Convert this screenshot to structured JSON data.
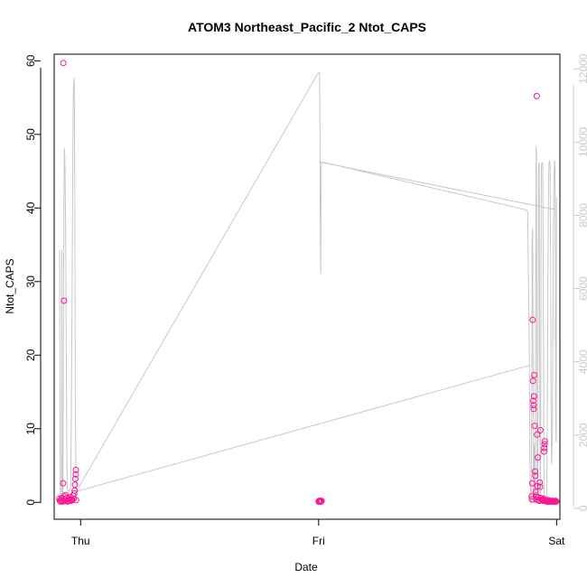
{
  "chart_data": {
    "type": "scatter",
    "title": "ATOM3 Northeast_Pacific_2 Ntot_CAPS",
    "xlabel": "Date",
    "ylabel": "Ntot_CAPS",
    "x_ticks": [
      "Thu",
      "Fri",
      "Sat"
    ],
    "xlim": [
      "Wed 21:20",
      "Sat 00:20"
    ],
    "ylim": [
      -2.3,
      60.9
    ],
    "y_ticks": [
      0,
      10,
      20,
      30,
      40,
      50,
      60
    ],
    "y2lim": [
      -300,
      12400
    ],
    "y2_ticks": [
      0,
      2000,
      4000,
      6000,
      8000,
      10000,
      12000
    ],
    "grid": false,
    "colors": {
      "points": "#ff1493",
      "altitude_line": "#c8c8c8",
      "axis": "#000000",
      "secondary_axis": "#c8c8c8"
    },
    "series": [
      {
        "role": "points",
        "axis": "left",
        "points": [
          [
            "Wed 21:51",
            0.5
          ],
          [
            "Wed 21:54",
            0.2
          ],
          [
            "Wed 21:58",
            0.1
          ],
          [
            "Wed 22:01",
            0.3
          ],
          [
            "Wed 22:05",
            0.6
          ],
          [
            "Wed 22:08",
            0.2
          ],
          [
            "Wed 22:12",
            0.1
          ],
          [
            "Wed 22:14",
            2.6
          ],
          [
            "Wed 22:16",
            59.7
          ],
          [
            "Wed 22:19",
            27.4
          ],
          [
            "Wed 22:22",
            0.3
          ],
          [
            "Wed 22:25",
            0.8
          ],
          [
            "Wed 22:29",
            1.0
          ],
          [
            "Wed 22:32",
            0.4
          ],
          [
            "Wed 22:36",
            0.6
          ],
          [
            "Wed 22:40",
            0.1
          ],
          [
            "Wed 22:44",
            0.2
          ],
          [
            "Wed 22:48",
            0.5
          ],
          [
            "Wed 22:52",
            0.3
          ],
          [
            "Wed 22:56",
            0.7
          ],
          [
            "Wed 23:00",
            0.2
          ],
          [
            "Wed 23:05",
            0.4
          ],
          [
            "Wed 23:10",
            0.3
          ],
          [
            "Wed 23:14",
            0.9
          ],
          [
            "Wed 23:18",
            0.5
          ],
          [
            "Wed 23:22",
            1.2
          ],
          [
            "Wed 23:24",
            1.6
          ],
          [
            "Wed 23:26",
            2.4
          ],
          [
            "Wed 23:28",
            3.2
          ],
          [
            "Wed 23:30",
            3.8
          ],
          [
            "Wed 23:31",
            4.4
          ],
          [
            "Wed 23:33",
            0.3
          ],
          [
            "Fri 00:00",
            0.1
          ],
          [
            "Fri 00:03",
            0.2
          ],
          [
            "Fri 00:06",
            0.1
          ],
          [
            "Fri 00:09",
            0.2
          ],
          [
            "Fri 00:12",
            0.1
          ],
          [
            "Fri 00:15",
            0.1
          ],
          [
            "Fri 00:18",
            0.2
          ],
          [
            "Fri 21:29",
            0.8
          ],
          [
            "Fri 21:31",
            0.4
          ],
          [
            "Fri 21:33",
            2.6
          ],
          [
            "Fri 21:35",
            24.8
          ],
          [
            "Fri 21:37",
            16.5
          ],
          [
            "Fri 21:38",
            13.8
          ],
          [
            "Fri 21:40",
            13.2
          ],
          [
            "Fri 21:41",
            12.7
          ],
          [
            "Fri 21:43",
            14.4
          ],
          [
            "Fri 21:45",
            17.3
          ],
          [
            "Fri 21:47",
            10.4
          ],
          [
            "Fri 21:49",
            4.2
          ],
          [
            "Fri 21:51",
            3.6
          ],
          [
            "Fri 21:53",
            1.4
          ],
          [
            "Fri 21:55",
            0.9
          ],
          [
            "Fri 21:57",
            0.4
          ],
          [
            "Fri 22:00",
            55.2
          ],
          [
            "Fri 22:02",
            9.2
          ],
          [
            "Fri 22:04",
            2.2
          ],
          [
            "Fri 22:06",
            6.1
          ],
          [
            "Fri 22:08",
            0.7
          ],
          [
            "Fri 22:10",
            0.3
          ],
          [
            "Fri 22:14",
            0.2
          ],
          [
            "Fri 22:18",
            2.7
          ],
          [
            "Fri 22:20",
            2.1
          ],
          [
            "Fri 22:22",
            9.8
          ],
          [
            "Fri 22:26",
            0.6
          ],
          [
            "Fri 22:30",
            0.3
          ],
          [
            "Fri 22:34",
            0.4
          ],
          [
            "Fri 22:38",
            0.2
          ],
          [
            "Fri 22:42",
            0.5
          ],
          [
            "Fri 22:44",
            6.9
          ],
          [
            "Fri 22:45",
            7.4
          ],
          [
            "Fri 22:47",
            7.9
          ],
          [
            "Fri 22:48",
            8.3
          ],
          [
            "Fri 22:50",
            0.3
          ],
          [
            "Fri 22:54",
            0.2
          ],
          [
            "Fri 22:58",
            0.1
          ],
          [
            "Fri 23:02",
            0.2
          ],
          [
            "Fri 23:06",
            0.1
          ],
          [
            "Fri 23:10",
            0.3
          ],
          [
            "Fri 23:14",
            0.1
          ],
          [
            "Fri 23:18",
            0.2
          ],
          [
            "Fri 23:22",
            0.1
          ],
          [
            "Fri 23:26",
            0.1
          ],
          [
            "Fri 23:30",
            0.2
          ],
          [
            "Fri 23:34",
            0.1
          ],
          [
            "Fri 23:38",
            0.2
          ],
          [
            "Fri 23:42",
            0.1
          ],
          [
            "Fri 23:46",
            0.1
          ],
          [
            "Fri 23:50",
            0.1
          ],
          [
            "Fri 23:54",
            0.2
          ],
          [
            "Fri 23:58",
            0.1
          ]
        ]
      },
      {
        "role": "line",
        "axis": "right",
        "points": [
          [
            "Wed 21:51",
            7000
          ],
          [
            "Wed 21:53",
            7050
          ],
          [
            "Wed 21:55",
            2300
          ],
          [
            "Wed 21:57",
            200
          ],
          [
            "Wed 21:59",
            120
          ],
          [
            "Wed 22:01",
            150
          ],
          [
            "Wed 22:04",
            200
          ],
          [
            "Wed 22:06",
            7070
          ],
          [
            "Wed 22:08",
            400
          ],
          [
            "Wed 22:09",
            150
          ],
          [
            "Wed 22:12",
            300
          ],
          [
            "Wed 22:14",
            2000
          ],
          [
            "Wed 22:17",
            6200
          ],
          [
            "Wed 22:20",
            9200
          ],
          [
            "Wed 22:22",
            9840
          ],
          [
            "Wed 22:25",
            9500
          ],
          [
            "Wed 22:28",
            8400
          ],
          [
            "Wed 22:31",
            6500
          ],
          [
            "Wed 22:34",
            3500
          ],
          [
            "Wed 22:37",
            1200
          ],
          [
            "Wed 22:40",
            500
          ],
          [
            "Wed 22:45",
            450
          ],
          [
            "Wed 22:50",
            500
          ],
          [
            "Wed 22:55",
            480
          ],
          [
            "Wed 23:00",
            600
          ],
          [
            "Wed 23:04",
            2600
          ],
          [
            "Wed 23:08",
            5500
          ],
          [
            "Wed 23:12",
            9000
          ],
          [
            "Wed 23:16",
            11400
          ],
          [
            "Wed 23:20",
            11700
          ],
          [
            "Wed 23:22",
            11740
          ],
          [
            "Wed 23:25",
            8000
          ],
          [
            "Wed 23:28",
            3000
          ],
          [
            "Wed 23:31",
            1200
          ],
          [
            "Wed 23:34",
            460
          ],
          [
            "Thu 23:59",
            11900
          ],
          [
            "Fri 00:05",
            11900
          ],
          [
            "Fri 00:07",
            11200
          ],
          [
            "Fri 00:09",
            9000
          ],
          [
            "Fri 00:11",
            7000
          ],
          [
            "Fri 00:13",
            6400
          ],
          [
            "Fri 00:15",
            8800
          ],
          [
            "Fri 00:17",
            9460
          ],
          [
            "Fri 20:53",
            8150
          ],
          [
            "Fri 21:05",
            8100
          ],
          [
            "Fri 21:16",
            3800
          ],
          [
            "Fri 21:18",
            1500
          ],
          [
            "Fri 21:22",
            200
          ],
          [
            "Fri 21:26",
            100
          ],
          [
            "Fri 21:30",
            3500
          ],
          [
            "Fri 21:32",
            7400
          ],
          [
            "Fri 21:34",
            7650
          ],
          [
            "Fri 21:36",
            7000
          ],
          [
            "Fri 21:38",
            2000
          ],
          [
            "Fri 21:40",
            300
          ],
          [
            "Fri 21:42",
            150
          ],
          [
            "Fri 21:44",
            1700
          ],
          [
            "Fri 21:46",
            120
          ],
          [
            "Fri 21:48",
            1800
          ],
          [
            "Fri 21:50",
            200
          ],
          [
            "Fri 21:52",
            3500
          ],
          [
            "Fri 21:54",
            7000
          ],
          [
            "Fri 21:56",
            9880
          ],
          [
            "Fri 21:58",
            9700
          ],
          [
            "Fri 22:00",
            5000
          ],
          [
            "Fri 22:02",
            1000
          ],
          [
            "Fri 22:04",
            300
          ],
          [
            "Fri 22:06",
            250
          ],
          [
            "Fri 22:09",
            5000
          ],
          [
            "Fri 22:11",
            9350
          ],
          [
            "Fri 22:13",
            9440
          ],
          [
            "Fri 22:15",
            9400
          ],
          [
            "Fri 22:17",
            6000
          ],
          [
            "Fri 22:19",
            1500
          ],
          [
            "Fri 22:21",
            200
          ],
          [
            "Fri 22:23",
            300
          ],
          [
            "Fri 22:26",
            6000
          ],
          [
            "Fri 22:28",
            9300
          ],
          [
            "Fri 22:30",
            9440
          ],
          [
            "Fri 22:33",
            9440
          ],
          [
            "Fri 22:36",
            9400
          ],
          [
            "Fri 22:39",
            7000
          ],
          [
            "Fri 22:42",
            3000
          ],
          [
            "Fri 22:44",
            600
          ],
          [
            "Fri 22:46",
            200
          ],
          [
            "Fri 22:49",
            150
          ],
          [
            "Fri 22:52",
            180
          ],
          [
            "Fri 22:56",
            170
          ],
          [
            "Fri 23:00",
            200
          ],
          [
            "Fri 23:04",
            2500
          ],
          [
            "Fri 23:08",
            6500
          ],
          [
            "Fri 23:12",
            9200
          ],
          [
            "Fri 23:15",
            9460
          ],
          [
            "Fri 23:18",
            9480
          ],
          [
            "Fri 23:21",
            9300
          ],
          [
            "Fri 23:24",
            6000
          ],
          [
            "Fri 23:27",
            2500
          ],
          [
            "Fri 23:30",
            1200
          ],
          [
            "Fri 23:34",
            1800
          ],
          [
            "Fri 23:40",
            7400
          ],
          [
            "Fri 23:44",
            9000
          ],
          [
            "Fri 23:47",
            9480
          ],
          [
            "Fri 23:50",
            9480
          ],
          [
            "Fri 23:52",
            7000
          ],
          [
            "Fri 23:54",
            3200
          ],
          [
            "Fri 23:56",
            1900
          ],
          [
            "Fri 23:58",
            1800
          ],
          [
            "Fri 23:59",
            8500
          ]
        ],
        "connectors": [
          [
            [
              "Wed 23:34",
              460
            ],
            [
              "Fri 21:14",
              3900
            ]
          ],
          [
            [
              "Fri 00:02",
              9460
            ],
            [
              "Fri 23:59",
              8150
            ]
          ]
        ]
      }
    ]
  }
}
